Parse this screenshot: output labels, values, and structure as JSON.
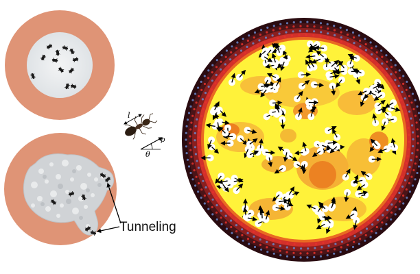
{
  "figure": {
    "annotation": "Tunneling",
    "vector_labels": {
      "length": "l",
      "direction": "p",
      "angle": "θ"
    }
  },
  "colors": {
    "arena_ring": "#df9476",
    "arena_floor": "#e9ecef",
    "soil": "#cfd3d6",
    "heat_low": "#fff23a",
    "heat_mid": "#f7b83a",
    "heat_high": "#ea6f1a",
    "wall_outer": "#2a0b10",
    "wall_ring": "#7a1a1c",
    "wall_dots_red": "#e4312b",
    "wall_dots_blue": "#6b86c8"
  }
}
